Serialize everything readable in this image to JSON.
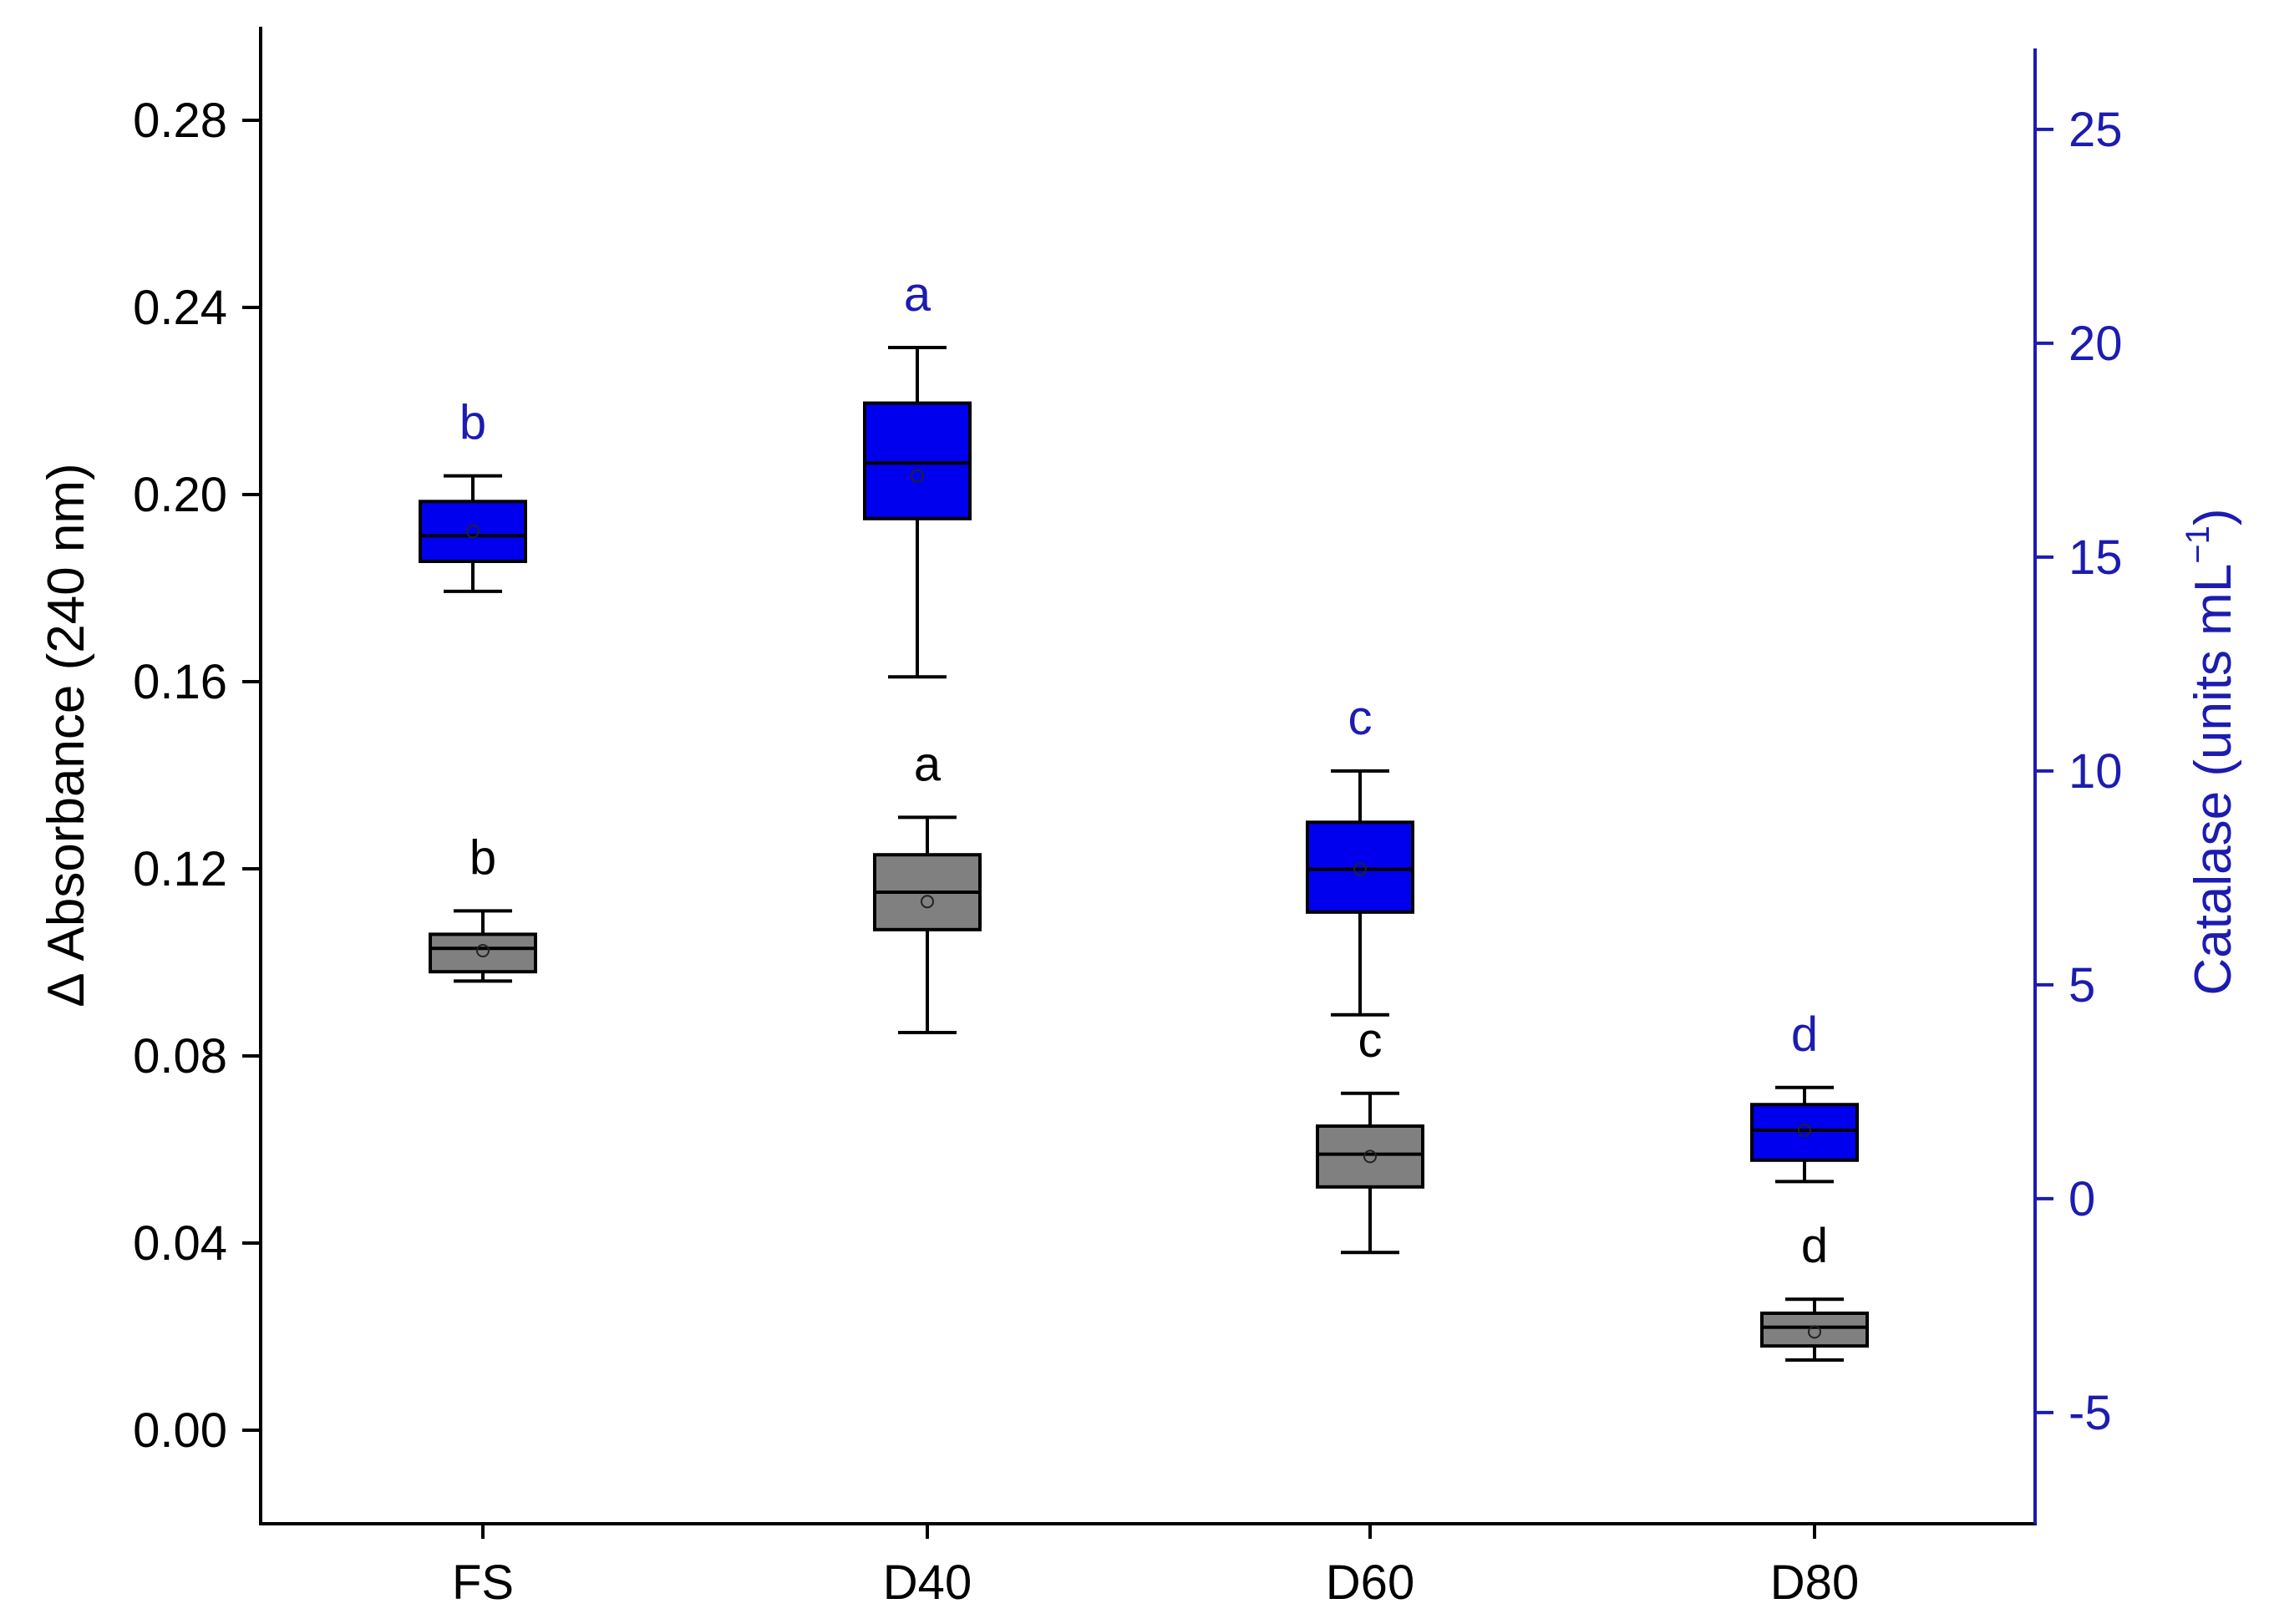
{
  "chart_data": {
    "type": "box",
    "categories": [
      "FS",
      "D40",
      "D60",
      "D80"
    ],
    "left_axis": {
      "label": "Δ Absorbance (240 nm)",
      "ylim": [
        -0.02,
        0.3
      ],
      "ticks": [
        0.0,
        0.04,
        0.08,
        0.12,
        0.16,
        0.2,
        0.24,
        0.28
      ],
      "tick_labels": [
        "0.00",
        "0.04",
        "0.08",
        "0.12",
        "0.16",
        "0.20",
        "0.24",
        "0.28"
      ],
      "color": "#000000"
    },
    "right_axis": {
      "label_main": "Catalase (units mL",
      "label_sup": "−1",
      "label_end": ")",
      "ylim": [
        -7.6,
        27.4
      ],
      "ticks": [
        -5,
        0,
        5,
        10,
        15,
        20,
        25
      ],
      "tick_labels": [
        "-5",
        "0",
        "5",
        "10",
        "15",
        "20",
        "25"
      ],
      "color": "#1c1cb0"
    },
    "series": [
      {
        "name": "Δ Absorbance",
        "axis": "left",
        "fill": "#808080",
        "letter_color": "#000000",
        "boxes": [
          {
            "category": "FS",
            "whisker_low": 0.096,
            "q1": 0.098,
            "median": 0.103,
            "q3": 0.106,
            "whisker_high": 0.111,
            "mean": 0.1025,
            "letter": "b"
          },
          {
            "category": "D40",
            "whisker_low": 0.085,
            "q1": 0.107,
            "median": 0.115,
            "q3": 0.123,
            "whisker_high": 0.131,
            "mean": 0.113,
            "letter": "a"
          },
          {
            "category": "D60",
            "whisker_low": 0.038,
            "q1": 0.052,
            "median": 0.059,
            "q3": 0.065,
            "whisker_high": 0.072,
            "mean": 0.0585,
            "letter": "c"
          },
          {
            "category": "D80",
            "whisker_low": 0.015,
            "q1": 0.018,
            "median": 0.022,
            "q3": 0.025,
            "whisker_high": 0.028,
            "mean": 0.021,
            "letter": "d"
          }
        ]
      },
      {
        "name": "Catalase",
        "axis": "right",
        "fill": "#0000ee",
        "letter_color": "#1c1cb0",
        "boxes": [
          {
            "category": "FS",
            "whisker_low": 14.2,
            "q1": 14.9,
            "median": 15.5,
            "q3": 16.3,
            "whisker_high": 16.9,
            "mean": 15.6,
            "letter": "b"
          },
          {
            "category": "D40",
            "whisker_low": 12.2,
            "q1": 15.9,
            "median": 17.2,
            "q3": 18.6,
            "whisker_high": 19.9,
            "mean": 16.9,
            "letter": "a"
          },
          {
            "category": "D60",
            "whisker_low": 4.3,
            "q1": 6.7,
            "median": 7.7,
            "q3": 8.8,
            "whisker_high": 10.0,
            "mean": 7.7,
            "letter": "c"
          },
          {
            "category": "D80",
            "whisker_low": 0.4,
            "q1": 0.9,
            "median": 1.6,
            "q3": 2.2,
            "whisker_high": 2.6,
            "mean": 1.6,
            "letter": "d"
          }
        ]
      }
    ]
  }
}
